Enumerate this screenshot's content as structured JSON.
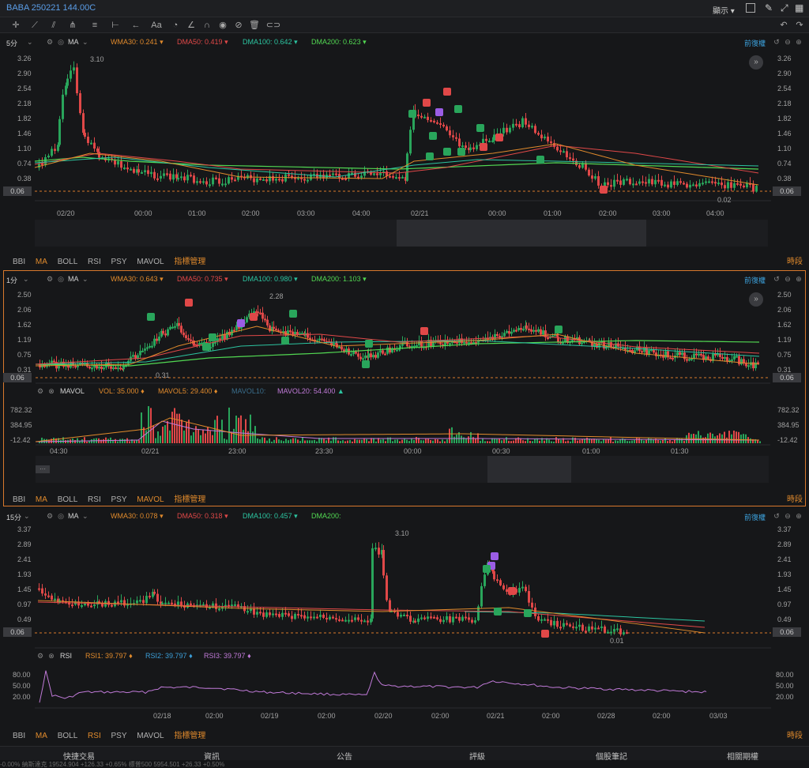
{
  "header": {
    "title": "BABA 250221 144.00C",
    "display_label": "顯示 ▾"
  },
  "toolbar": {
    "icons": [
      "crosshair-icon",
      "line-icon",
      "channel-icon",
      "pitchfork-icon",
      "fib-icon",
      "measure-icon",
      "arrow-icon",
      "text-icon",
      "brush-icon",
      "pencil-icon",
      "magnet-icon",
      "eye-icon",
      "lock-icon",
      "trash-icon",
      "link-icon"
    ]
  },
  "panel1": {
    "interval": "5分",
    "indicator": "MA",
    "wma30": "WMA30:",
    "wma30_val": "0.241",
    "dma50": "DMA50:",
    "dma50_val": "0.419",
    "dma100": "DMA100:",
    "dma100_val": "0.642",
    "dma200": "DMA200:",
    "dma200_val": "0.623",
    "adjust": "前復權",
    "yticks": [
      "3.26",
      "2.90",
      "2.54",
      "2.18",
      "1.82",
      "1.46",
      "1.10",
      "0.74",
      "0.38",
      "0.06"
    ],
    "xticks": [
      "02/20",
      "00:00",
      "01:00",
      "02:00",
      "03:00",
      "04:00",
      "02/21",
      "00:00",
      "01:00",
      "02:00",
      "03:00",
      "04:00"
    ],
    "high_label": "3.10",
    "low_label": "0.02",
    "current": "0.06",
    "tabs": [
      "BBI",
      "MA",
      "BOLL",
      "RSI",
      "PSY",
      "MAVOL",
      "指標管理"
    ],
    "period": "時段"
  },
  "panel2": {
    "interval": "1分",
    "indicator": "MA",
    "wma30": "WMA30:",
    "wma30_val": "0.643",
    "dma50": "DMA50:",
    "dma50_val": "0.735",
    "dma100": "DMA100:",
    "dma100_val": "0.980",
    "dma200": "DMA200:",
    "dma200_val": "1.103",
    "adjust": "前復權",
    "yticks": [
      "2.50",
      "2.06",
      "1.62",
      "1.19",
      "0.75",
      "0.31",
      "0.06"
    ],
    "high_label": "2.28",
    "low_label": "0.31",
    "current": "0.06",
    "mavol": "MAVOL",
    "vol": "VOL:",
    "vol_val": "35.000",
    "mavol5": "MAVOL5:",
    "mavol5_val": "29.400",
    "mavol10": "MAVOL10:",
    "mavol20": "MAVOL20:",
    "mavol20_val": "54.400",
    "vol_yticks": [
      "782.32",
      "384.95",
      "-12.42"
    ],
    "xticks": [
      "04:30",
      "02/21",
      "23:00",
      "23:30",
      "00:00",
      "00:30",
      "01:00",
      "01:30"
    ],
    "tabs": [
      "BBI",
      "MA",
      "BOLL",
      "RSI",
      "PSY",
      "MAVOL",
      "指標管理"
    ],
    "period": "時段"
  },
  "panel3": {
    "interval": "15分",
    "indicator": "MA",
    "wma30": "WMA30:",
    "wma30_val": "0.078",
    "dma50": "DMA50:",
    "dma50_val": "0.318",
    "dma100": "DMA100:",
    "dma100_val": "0.457",
    "dma200": "DMA200:",
    "adjust": "前復權",
    "yticks": [
      "3.37",
      "2.89",
      "2.41",
      "1.93",
      "1.45",
      "0.97",
      "0.49",
      "0.06"
    ],
    "high_label": "3.10",
    "low_label": "0.01",
    "current": "0.06",
    "rsi": "RSI",
    "rsi1": "RSI1:",
    "rsi1_val": "39.797",
    "rsi2": "RSI2:",
    "rsi2_val": "39.797",
    "rsi3": "RSI3:",
    "rsi3_val": "39.797",
    "rsi_yticks": [
      "80.00",
      "50.00",
      "20.00"
    ],
    "xticks": [
      "02/18",
      "02:00",
      "02/19",
      "02:00",
      "02/20",
      "02:00",
      "02/21",
      "02:00",
      "02/28",
      "02:00",
      "03/03"
    ],
    "tabs": [
      "BBI",
      "MA",
      "BOLL",
      "RSI",
      "PSY",
      "MAVOL",
      "指標管理"
    ],
    "period": "時段"
  },
  "bottom_nav": [
    "快捷交易",
    "資訊",
    "公告",
    "評級",
    "個股筆記",
    "相關期權"
  ],
  "ticker_text": "-0.00%   納斯達克 19524.904  +126.33  +0.65%   標普500 5954.501  +26.33  +0.50%",
  "colors": {
    "up": "#29a55b",
    "down": "#e04848",
    "accent": "#d8782c",
    "wma": "#e08a2c",
    "dma50": "#e04848",
    "dma100": "#2cc4a0",
    "dma200": "#52d852"
  }
}
